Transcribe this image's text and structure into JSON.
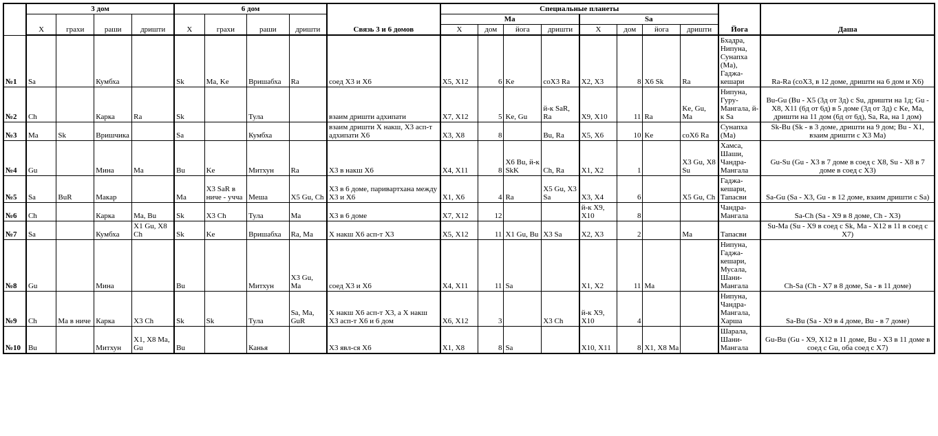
{
  "headers": {
    "h3": "3 дом",
    "h6": "6 дом",
    "link36": "Связь 3 и 6 домов",
    "special": "Специальные планеты",
    "ma": "Ma",
    "sa": "Sa",
    "yoga": "Йога",
    "dasha": "Даша",
    "sub": {
      "x": "Х",
      "grahi": "грахи",
      "rashi": "раши",
      "drishti": "дришти",
      "dom": "дом",
      "yoga": "йога"
    }
  },
  "rows": [
    {
      "n": "№1",
      "h3_x": "Sa",
      "h3_g": "",
      "h3_r": "Кумбха",
      "h3_d": "",
      "h6_x": "Sk",
      "h6_g": "Ma, Ke",
      "h6_r": "Вришабха",
      "h6_d": "Ra",
      "link": "соед Х3 и Х6",
      "ma_x": "Х5, Х12",
      "ma_d": "6",
      "ma_y": "Ke",
      "ma_dr": "соХ3 Ra",
      "sa_x": "Х2, Х3",
      "sa_d": "8",
      "sa_y": "Х6 Sk",
      "sa_dr": "Ra",
      "yoga": "Бхадра, Нипуна, Сунапха (Ма), Гаджа-кешари",
      "dasha": "Ra-Ra (соХ3, в 12 доме, дришти на 6 дом и Х6)"
    },
    {
      "n": "№2",
      "h3_x": "Ch",
      "h3_g": "",
      "h3_r": "Карка",
      "h3_d": "Ra",
      "h6_x": "Sk",
      "h6_g": "",
      "h6_r": "Тула",
      "h6_d": "",
      "link": "взаим дришти адхипати",
      "ma_x": "Х7, Х12",
      "ma_d": "5",
      "ma_y": "Ke, Gu",
      "ma_dr": "й-к SaR, Ra",
      "sa_x": "Х9, Х10",
      "sa_d": "11",
      "sa_y": "Ra",
      "sa_dr": "Ke, Gu, Ma",
      "yoga": "Нипуна, Гуру-Мангала, й-к Sa",
      "dasha": "Bu-Gu (Bu - Х5 (3д от 3д) с Su, дришти на 1д; Gu - Х8, Х11 (6д от 6д) в 5 доме (3д от 3д) с Ke, Ma, дришти на 11 дом (6д от 6д), Sa, Ra, на 1 дом)"
    },
    {
      "n": "№3",
      "h3_x": "Ma",
      "h3_g": "Sk",
      "h3_r": "Вришчика",
      "h3_d": "",
      "h6_x": "Sa",
      "h6_g": "",
      "h6_r": "Кумбха",
      "h6_d": "",
      "link": "взаим дришти Х накш, Х3 асп-т адхипати Х6",
      "ma_x": "Х3, Х8",
      "ma_d": "8",
      "ma_y": "",
      "ma_dr": "Bu, Ra",
      "sa_x": "Х5, Х6",
      "sa_d": "10",
      "sa_y": "Ke",
      "sa_dr": "соХ6 Ra",
      "yoga": "Сунапха (Ма)",
      "dasha": "Sk-Bu (Sk - в 3 доме, дришти на 9 дом; Bu - Х1, взаим дришти с Х3 Ма)"
    },
    {
      "n": "№4",
      "h3_x": "Gu",
      "h3_g": "",
      "h3_r": "Мина",
      "h3_d": "Ma",
      "h6_x": "Bu",
      "h6_g": "Ke",
      "h6_r": "Митхун",
      "h6_d": "Ra",
      "link": "Х3 в накш Х6",
      "ma_x": "Х4, Х11",
      "ma_d": "8",
      "ma_y": "Х6 Bu, й-к SkK",
      "ma_dr": "Ch, Ra",
      "sa_x": "Х1, Х2",
      "sa_d": "1",
      "sa_y": "",
      "sa_dr": "Х3 Gu, Х8 Su",
      "yoga": "Хамса, Шаши, Чандра-Мангала",
      "dasha": "Gu-Su (Gu - Х3 в 7 доме в соед с Х8, Su - Х8 в 7 доме в соед с Х3)"
    },
    {
      "n": "№5",
      "h3_x": "Sa",
      "h3_g": "BuR",
      "h3_r": "Макар",
      "h3_d": "",
      "h6_x": "Ma",
      "h6_g": "Х3 SaR в ниче - учча",
      "h6_r": "Меша",
      "h6_d": "Х5 Gu, Ch",
      "link": "Х3 в 6 доме, паривартхана между Х3 и Х6",
      "ma_x": "Х1, Х6",
      "ma_d": "4",
      "ma_y": "Ra",
      "ma_dr": "Х5 Gu, Х3 Sa",
      "sa_x": "Х3, Х4",
      "sa_d": "6",
      "sa_y": "",
      "sa_dr": "Х5 Gu, Ch",
      "yoga": "Гаджа-кешари, Тапасви",
      "dasha": "Sa-Gu (Sa - Х3, Gu - в 12 доме, взаим дришти с Sa)"
    },
    {
      "n": "№6",
      "h3_x": "Ch",
      "h3_g": "",
      "h3_r": "Карка",
      "h3_d": "Ma, Bu",
      "h6_x": "Sk",
      "h6_g": "Х3 Ch",
      "h6_r": "Тула",
      "h6_d": "Ma",
      "link": "Х3 в 6 доме",
      "ma_x": "Х7, Х12",
      "ma_d": "12",
      "ma_y": "",
      "ma_dr": "",
      "sa_x": "й-к Х9, Х10",
      "sa_d": "8",
      "sa_y": "",
      "sa_dr": "",
      "yoga": "Чандра-Мангала",
      "dasha": "Sa-Ch (Sa - Х9 в 8 доме, Ch - Х3)"
    },
    {
      "n": "№7",
      "h3_x": "Sa",
      "h3_g": "",
      "h3_r": "Кумбха",
      "h3_d": "Х1 Gu, Х8 Ch",
      "h6_x": "Sk",
      "h6_g": "Ke",
      "h6_r": "Вришабха",
      "h6_d": "Ra, Ma",
      "link": "Х накш Х6 асп-т Х3",
      "ma_x": "Х5, Х12",
      "ma_d": "11",
      "ma_y": "Х1 Gu, Bu",
      "ma_dr": "Х3 Sa",
      "sa_x": "Х2, Х3",
      "sa_d": "2",
      "sa_y": "",
      "sa_dr": "Ma",
      "yoga": "Тапасви",
      "dasha": "Su-Ma (Su - Х9 в соед с Sk, Ma - Х12 в 11 в соед с Х7)"
    },
    {
      "n": "№8",
      "h3_x": "Gu",
      "h3_g": "",
      "h3_r": "Мина",
      "h3_d": "",
      "h6_x": "Bu",
      "h6_g": "",
      "h6_r": "Митхун",
      "h6_d": "Х3 Gu, Ma",
      "link": "соед Х3 и Х6",
      "ma_x": "Х4, Х11",
      "ma_d": "11",
      "ma_y": "Sa",
      "ma_dr": "",
      "sa_x": "Х1, Х2",
      "sa_d": "11",
      "sa_y": "Ma",
      "sa_dr": "",
      "yoga": "Нипуна, Гаджа-кешари, Мусала, Шани-Мангала",
      "dasha": "Ch-Sa (Ch - Х7 в 8 доме, Sa - в 11 доме)"
    },
    {
      "n": "№9",
      "h3_x": "Ch",
      "h3_g": "Ма в ниче",
      "h3_r": "Карка",
      "h3_d": "Х3 Ch",
      "h6_x": "Sk",
      "h6_g": "Sk",
      "h6_r": "Тула",
      "h6_d": "Sa, Ma, GuR",
      "link": "Х накш Х6 асп-т Х3, а Х накш Х3 асп-т Х6 и 6 дом",
      "ma_x": "Х6, Х12",
      "ma_d": "3",
      "ma_y": "",
      "ma_dr": "Х3 Ch",
      "sa_x": "й-к Х9, Х10",
      "sa_d": "4",
      "sa_y": "",
      "sa_dr": "",
      "yoga": "Нипуна, Чандра-Мангала, Харша",
      "dasha": "Sa-Bu (Sa - Х9 в 4 доме, Bu - в 7 доме)"
    },
    {
      "n": "№10",
      "h3_x": "Bu",
      "h3_g": "",
      "h3_r": "Митхун",
      "h3_d": "Х1, Х8 Ma, Gu",
      "h6_x": "Bu",
      "h6_g": "",
      "h6_r": "Канья",
      "h6_d": "",
      "link": "Х3 явл-ся Х6",
      "ma_x": "Х1, Х8",
      "ma_d": "8",
      "ma_y": "Sa",
      "ma_dr": "",
      "sa_x": "Х10, Х11",
      "sa_d": "8",
      "sa_y": "Х1, Х8 Ма",
      "sa_dr": "",
      "yoga": "Шарала, Шани-Мангала",
      "dasha": "Gu-Bu (Gu - Х9, Х12 в 11 доме, Bu - Х3 в 11 доме в соед с Gu, оба соед с Х7)"
    }
  ]
}
